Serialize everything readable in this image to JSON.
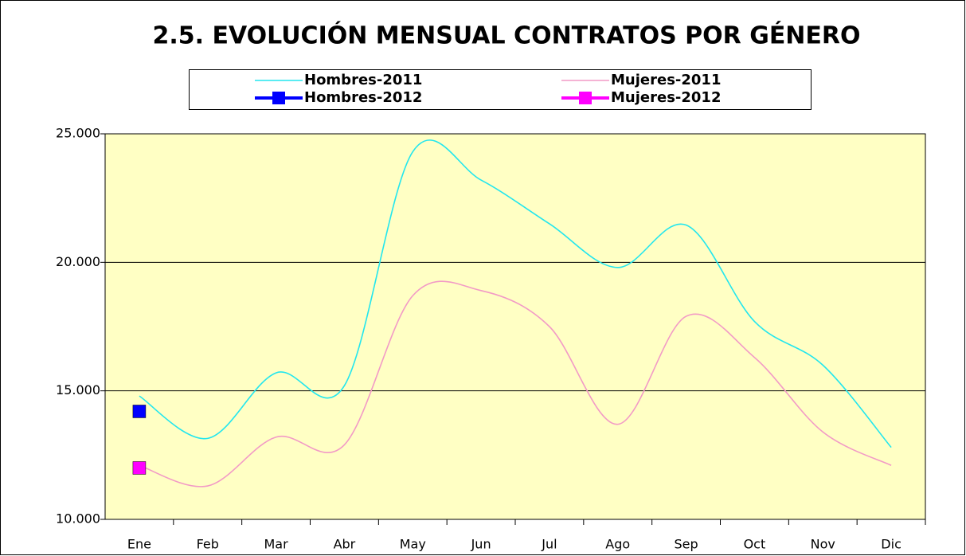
{
  "chart_data": {
    "type": "line",
    "title": "2.5. EVOLUCIÓN MENSUAL CONTRATOS POR GÉNERO",
    "categories": [
      "Ene",
      "Feb",
      "Mar",
      "Abr",
      "May",
      "Jun",
      "Jul",
      "Ago",
      "Sep",
      "Oct",
      "Nov",
      "Dic"
    ],
    "series": [
      {
        "name": "Hombres-2011",
        "color": "#22e6ee",
        "values": [
          14800,
          13150,
          15700,
          15200,
          24300,
          23200,
          21500,
          19800,
          21450,
          17700,
          16000,
          12800
        ]
      },
      {
        "name": "Mujeres-2011",
        "color": "#f29ac6",
        "values": [
          12100,
          11300,
          13200,
          12900,
          18700,
          18900,
          17500,
          13700,
          17900,
          16300,
          13400,
          12100
        ]
      },
      {
        "name": "Hombres-2012",
        "color": "#0000ff",
        "marker": "square",
        "values": [
          14200,
          null,
          null,
          null,
          null,
          null,
          null,
          null,
          null,
          null,
          null,
          null
        ]
      },
      {
        "name": "Mujeres-2012",
        "color": "#ff00ff",
        "marker": "square",
        "values": [
          12000,
          null,
          null,
          null,
          null,
          null,
          null,
          null,
          null,
          null,
          null,
          null
        ]
      }
    ],
    "ylim": [
      10000,
      25000
    ],
    "yticks": [
      {
        "value": 10000,
        "label": "10.000"
      },
      {
        "value": 15000,
        "label": "15.000"
      },
      {
        "value": 20000,
        "label": "20.000"
      },
      {
        "value": 25000,
        "label": "25.000"
      }
    ],
    "grid": true,
    "smooth": true,
    "background": "#ffffc4"
  }
}
